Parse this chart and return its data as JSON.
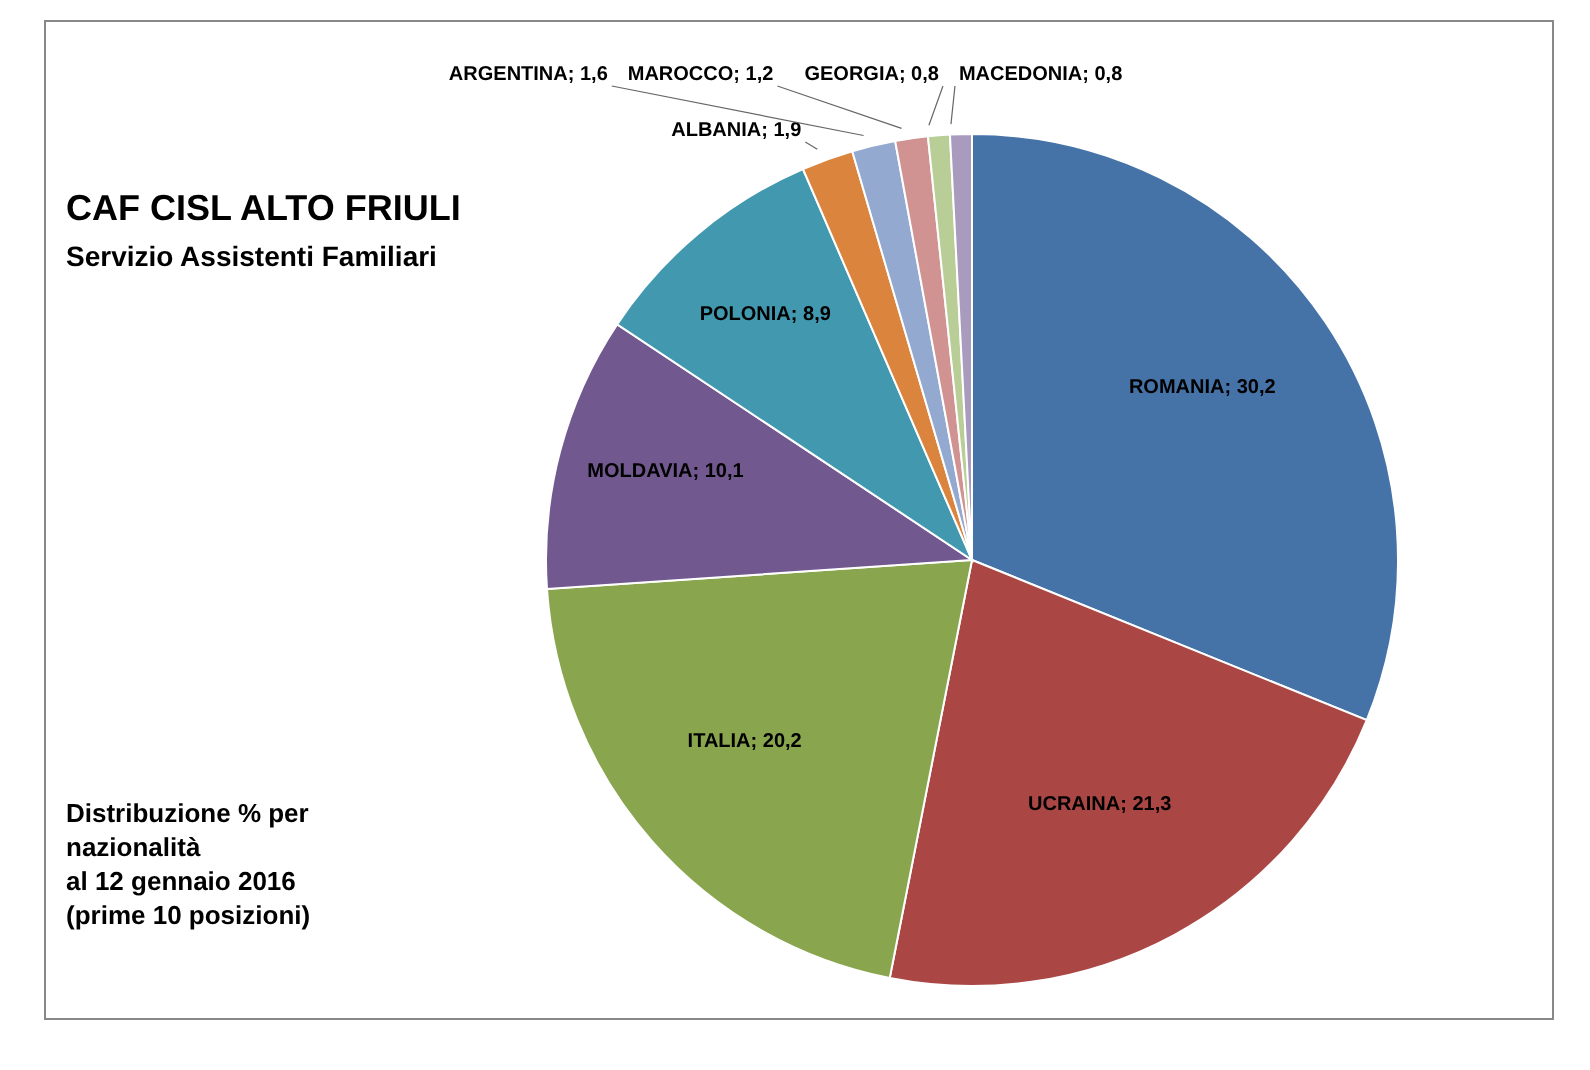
{
  "chart_data": {
    "type": "pie",
    "title": "CAF CISL ALTO FRIULI",
    "subtitle": "Servizio Assistenti Familiari",
    "annotations": [
      "Distribuzione % per\nnazionalità\nal 12 gennaio 2016\n(prime 10 posizioni)"
    ],
    "categories": [
      "ROMANIA",
      "UCRAINA",
      "ITALIA",
      "MOLDAVIA",
      "POLONIA",
      "ALBANIA",
      "ARGENTINA",
      "MAROCCO",
      "GEORGIA",
      "MACEDONIA"
    ],
    "values": [
      30.2,
      21.3,
      20.2,
      10.1,
      8.9,
      1.9,
      1.6,
      1.2,
      0.8,
      0.8
    ],
    "value_labels": [
      "30,2",
      "21,3",
      "20,2",
      "10,1",
      "8,9",
      "1,9",
      "1,6",
      "1,2",
      "0,8",
      "0,8"
    ],
    "colors": [
      "#4572a7",
      "#aa4643",
      "#89a54e",
      "#71588f",
      "#4198af",
      "#db843d",
      "#93a9cf",
      "#d19392",
      "#b9cd96",
      "#a99bbd"
    ],
    "legend": false
  }
}
